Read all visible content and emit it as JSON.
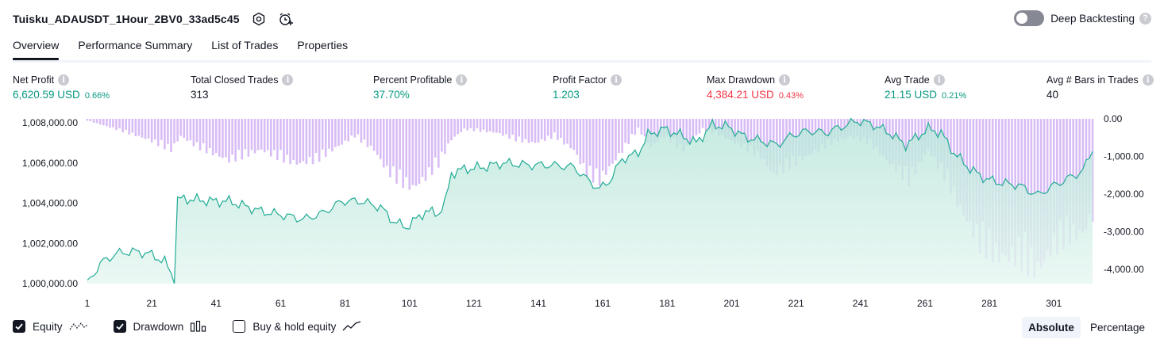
{
  "header": {
    "title": "Tuisku_ADAUSDT_1Hour_2BV0_33ad5c45",
    "deep_backtesting_label": "Deep Backtesting",
    "help_glyph": "?"
  },
  "tabs": [
    {
      "label": "Overview",
      "active": true
    },
    {
      "label": "Performance Summary",
      "active": false
    },
    {
      "label": "List of Trades",
      "active": false
    },
    {
      "label": "Properties",
      "active": false
    }
  ],
  "metrics": [
    {
      "label": "Net Profit",
      "value": "6,620.59 USD",
      "pct": "0.66%",
      "tone": "green"
    },
    {
      "label": "Total Closed Trades",
      "value": "313",
      "pct": "",
      "tone": "dark"
    },
    {
      "label": "Percent Profitable",
      "value": "37.70%",
      "pct": "",
      "tone": "green"
    },
    {
      "label": "Profit Factor",
      "value": "1.203",
      "pct": "",
      "tone": "green"
    },
    {
      "label": "Max Drawdown",
      "value": "4,384.21 USD",
      "pct": "0.43%",
      "tone": "red"
    },
    {
      "label": "Avg Trade",
      "value": "21.15 USD",
      "pct": "0.21%",
      "tone": "green"
    },
    {
      "label": "Avg # Bars in Trades",
      "value": "40",
      "pct": "",
      "tone": "dark"
    }
  ],
  "legend": {
    "equity": "Equity",
    "drawdown": "Drawdown",
    "buy_hold": "Buy & hold equity"
  },
  "scale_mode": {
    "absolute": "Absolute",
    "percentage": "Percentage"
  },
  "colors": {
    "equity_line": "#22ab94",
    "equity_fill": "#cdeee6",
    "drawdown_bar": "#d8bcf5",
    "text": "#131722"
  },
  "chart_data": {
    "type": "area",
    "x_ticks": [
      "1",
      "21",
      "41",
      "61",
      "81",
      "101",
      "121",
      "141",
      "161",
      "181",
      "201",
      "221",
      "241",
      "261",
      "281",
      "301"
    ],
    "y_left_ticks": [
      "1,008,000.00",
      "1,006,000.00",
      "1,004,000.00",
      "1,002,000.00",
      "1,000,000.00"
    ],
    "y_right_ticks": [
      "0.00",
      "-1,000.00",
      "-2,000.00",
      "-3,000.00",
      "-4,000.00"
    ],
    "y_left_range": [
      1000000,
      1008200
    ],
    "y_right_range": [
      -4384,
      0
    ],
    "x_range": [
      1,
      313
    ],
    "series": [
      {
        "name": "Equity",
        "type": "line",
        "points": [
          [
            1,
            1000000
          ],
          [
            5,
            1001000
          ],
          [
            10,
            1001500
          ],
          [
            15,
            1001600
          ],
          [
            20,
            1001500
          ],
          [
            25,
            1001100
          ],
          [
            28,
            1000200
          ],
          [
            29,
            1004200
          ],
          [
            33,
            1004200
          ],
          [
            40,
            1004100
          ],
          [
            45,
            1004100
          ],
          [
            55,
            1003600
          ],
          [
            62,
            1003400
          ],
          [
            68,
            1003200
          ],
          [
            74,
            1003500
          ],
          [
            80,
            1004100
          ],
          [
            86,
            1004100
          ],
          [
            92,
            1003800
          ],
          [
            96,
            1003100
          ],
          [
            100,
            1002800
          ],
          [
            106,
            1003600
          ],
          [
            110,
            1003500
          ],
          [
            112,
            1004000
          ],
          [
            114,
            1005500
          ],
          [
            118,
            1005700
          ],
          [
            124,
            1005800
          ],
          [
            130,
            1006000
          ],
          [
            138,
            1005900
          ],
          [
            145,
            1005900
          ],
          [
            152,
            1005800
          ],
          [
            156,
            1005200
          ],
          [
            160,
            1004700
          ],
          [
            163,
            1005100
          ],
          [
            167,
            1006200
          ],
          [
            172,
            1006500
          ],
          [
            175,
            1007400
          ],
          [
            180,
            1007700
          ],
          [
            185,
            1007400
          ],
          [
            190,
            1007000
          ],
          [
            195,
            1007900
          ],
          [
            200,
            1007800
          ],
          [
            205,
            1007300
          ],
          [
            210,
            1007100
          ],
          [
            215,
            1006900
          ],
          [
            220,
            1007400
          ],
          [
            225,
            1007600
          ],
          [
            230,
            1007500
          ],
          [
            235,
            1007800
          ],
          [
            240,
            1008100
          ],
          [
            245,
            1007900
          ],
          [
            250,
            1007500
          ],
          [
            255,
            1006900
          ],
          [
            262,
            1007700
          ],
          [
            266,
            1007500
          ],
          [
            270,
            1006500
          ],
          [
            275,
            1005700
          ],
          [
            280,
            1005200
          ],
          [
            285,
            1005000
          ],
          [
            290,
            1004900
          ],
          [
            296,
            1004400
          ],
          [
            300,
            1004800
          ],
          [
            305,
            1005200
          ],
          [
            310,
            1005600
          ],
          [
            313,
            1006700
          ]
        ]
      },
      {
        "name": "Drawdown",
        "type": "bar",
        "points": [
          [
            1,
            -50
          ],
          [
            10,
            -300
          ],
          [
            20,
            -600
          ],
          [
            27,
            -900
          ],
          [
            30,
            -500
          ],
          [
            35,
            -800
          ],
          [
            45,
            -1200
          ],
          [
            55,
            -900
          ],
          [
            60,
            -1100
          ],
          [
            66,
            -1300
          ],
          [
            72,
            -1200
          ],
          [
            77,
            -900
          ],
          [
            84,
            -500
          ],
          [
            90,
            -900
          ],
          [
            94,
            -1500
          ],
          [
            98,
            -1800
          ],
          [
            102,
            -2000
          ],
          [
            106,
            -1700
          ],
          [
            110,
            -1300
          ],
          [
            114,
            -600
          ],
          [
            118,
            -300
          ],
          [
            128,
            -400
          ],
          [
            134,
            -600
          ],
          [
            140,
            -700
          ],
          [
            146,
            -500
          ],
          [
            152,
            -900
          ],
          [
            156,
            -1600
          ],
          [
            160,
            -1800
          ],
          [
            164,
            -1300
          ],
          [
            168,
            -800
          ],
          [
            172,
            -300
          ],
          [
            176,
            -800
          ],
          [
            180,
            -500
          ],
          [
            186,
            -900
          ],
          [
            192,
            -300
          ],
          [
            196,
            -400
          ],
          [
            204,
            -800
          ],
          [
            210,
            -1100
          ],
          [
            214,
            -1600
          ],
          [
            220,
            -1300
          ],
          [
            226,
            -1000
          ],
          [
            232,
            -700
          ],
          [
            238,
            -500
          ],
          [
            244,
            -700
          ],
          [
            250,
            -1300
          ],
          [
            256,
            -1800
          ],
          [
            262,
            -900
          ],
          [
            268,
            -1800
          ],
          [
            272,
            -2600
          ],
          [
            278,
            -3600
          ],
          [
            284,
            -4000
          ],
          [
            290,
            -4000
          ],
          [
            296,
            -4400
          ],
          [
            300,
            -3800
          ],
          [
            305,
            -3400
          ],
          [
            310,
            -3300
          ],
          [
            313,
            -2800
          ]
        ]
      }
    ],
    "ylabel": "",
    "xlabel": "",
    "grid": false,
    "legend": "bottom-left"
  }
}
